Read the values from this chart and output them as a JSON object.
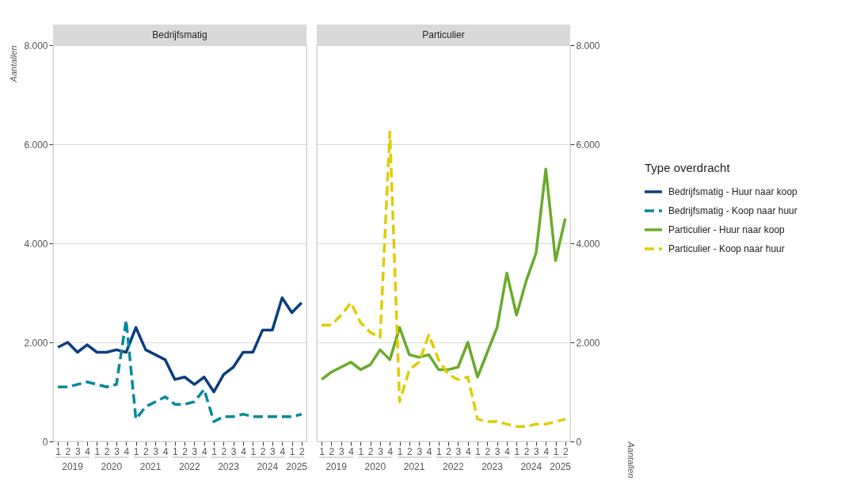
{
  "chart_data": [
    {
      "type": "line",
      "title": "Bedrijfsmatig",
      "ylabel": "Aantallen",
      "categories": [
        "1",
        "2",
        "3",
        "4",
        "1",
        "2",
        "3",
        "4",
        "1",
        "2",
        "3",
        "4",
        "1",
        "2",
        "3",
        "4",
        "1",
        "2",
        "3",
        "4",
        "1",
        "2",
        "3",
        "4",
        "1",
        "2"
      ],
      "annotations": [
        "2019",
        "2020",
        "2021",
        "2022",
        "2023",
        "2024",
        "2025"
      ],
      "ylim": [
        0,
        8000
      ],
      "yticks": [
        0,
        {
          "value": 2000,
          "label": "2.000"
        },
        {
          "value": 4000,
          "label": "4.000"
        },
        {
          "value": 6000,
          "label": "6.000"
        },
        {
          "value": 8000,
          "label": "8.000"
        }
      ],
      "grid": "y",
      "marker": "none",
      "legend": "right",
      "series": [
        {
          "name": "Bedrijfsmatig - Huur naar koop",
          "color": "#0b3d80",
          "line_style": "solid",
          "values": [
            1900,
            2000,
            1800,
            1950,
            1800,
            1800,
            1850,
            1800,
            2300,
            1850,
            1750,
            1650,
            1250,
            1300,
            1150,
            1300,
            1000,
            1350,
            1500,
            1800,
            1800,
            2250,
            2250,
            2900,
            2600,
            2800
          ]
        },
        {
          "name": "Bedrijfsmatig - Koop naar huur",
          "color": "#00899a",
          "line_style": "dashed",
          "values": [
            1100,
            1100,
            1150,
            1200,
            1150,
            1100,
            1150,
            2450,
            450,
            700,
            800,
            900,
            750,
            750,
            800,
            1050,
            400,
            500,
            500,
            550,
            500,
            500,
            500,
            500,
            500,
            550
          ]
        }
      ]
    },
    {
      "type": "line",
      "title": "Particulier",
      "ylabel": "Aantallen",
      "categories": [
        "1",
        "2",
        "3",
        "4",
        "1",
        "2",
        "3",
        "4",
        "1",
        "2",
        "3",
        "4",
        "1",
        "2",
        "3",
        "4",
        "1",
        "2",
        "3",
        "4",
        "1",
        "2",
        "3",
        "4",
        "1",
        "2"
      ],
      "annotations": [
        "2019",
        "2020",
        "2021",
        "2022",
        "2023",
        "2024",
        "2025"
      ],
      "ylim": [
        0,
        8000
      ],
      "yticks": [
        0,
        {
          "value": 2000,
          "label": "2.000"
        },
        {
          "value": 4000,
          "label": "4.000"
        },
        {
          "value": 6000,
          "label": "6.000"
        },
        {
          "value": 8000,
          "label": "8.000"
        }
      ],
      "grid": "y",
      "marker": "none",
      "legend": "right",
      "legend_title": "Type overdracht",
      "series": [
        {
          "name": "Particulier - Huur naar koop",
          "color": "#6aaa2a",
          "line_style": "solid",
          "values": [
            1250,
            1400,
            1500,
            1600,
            1450,
            1550,
            1850,
            1650,
            2300,
            1750,
            1700,
            1750,
            1450,
            1450,
            1500,
            2000,
            1300,
            1800,
            2300,
            3400,
            2550,
            3250,
            3800,
            5500,
            3650,
            4500
          ]
        },
        {
          "name": "Particulier - Koop naar huur",
          "color": "#e0cc00",
          "line_style": "dashed",
          "values": [
            2350,
            2350,
            2550,
            2800,
            2400,
            2200,
            2100,
            6250,
            800,
            1450,
            1600,
            2150,
            1650,
            1350,
            1250,
            1300,
            450,
            400,
            400,
            350,
            300,
            300,
            350,
            350,
            400,
            450
          ]
        }
      ]
    }
  ]
}
